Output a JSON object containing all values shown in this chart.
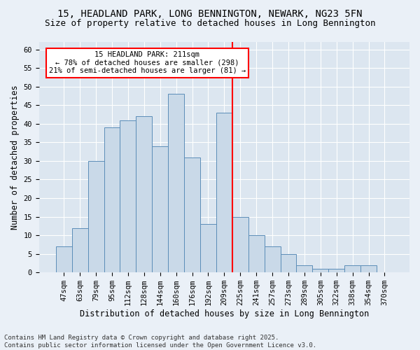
{
  "title1": "15, HEADLAND PARK, LONG BENNINGTON, NEWARK, NG23 5FN",
  "title2": "Size of property relative to detached houses in Long Bennington",
  "xlabel": "Distribution of detached houses by size in Long Bennington",
  "ylabel": "Number of detached properties",
  "categories": [
    "47sqm",
    "63sqm",
    "79sqm",
    "95sqm",
    "112sqm",
    "128sqm",
    "144sqm",
    "160sqm",
    "176sqm",
    "192sqm",
    "209sqm",
    "225sqm",
    "241sqm",
    "257sqm",
    "273sqm",
    "289sqm",
    "305sqm",
    "322sqm",
    "338sqm",
    "354sqm",
    "370sqm"
  ],
  "values": [
    7,
    12,
    30,
    39,
    41,
    42,
    34,
    48,
    31,
    13,
    43,
    15,
    10,
    7,
    5,
    2,
    1,
    1,
    2,
    2,
    0
  ],
  "bar_color": "#c9d9e8",
  "bar_edge_color": "#5b8db8",
  "vline_x_index": 10.5,
  "vline_color": "red",
  "annotation_text": "15 HEADLAND PARK: 211sqm\n← 78% of detached houses are smaller (298)\n21% of semi-detached houses are larger (81) →",
  "annotation_box_color": "white",
  "annotation_box_edge_color": "red",
  "footnote1": "Contains HM Land Registry data © Crown copyright and database right 2025.",
  "footnote2": "Contains public sector information licensed under the Open Government Licence v3.0.",
  "ylim": [
    0,
    62
  ],
  "yticks": [
    0,
    5,
    10,
    15,
    20,
    25,
    30,
    35,
    40,
    45,
    50,
    55,
    60
  ],
  "bg_color": "#eaf0f7",
  "plot_bg_color": "#dce6f0",
  "grid_color": "white",
  "title1_fontsize": 10,
  "title2_fontsize": 9,
  "tick_fontsize": 7.5,
  "label_fontsize": 8.5,
  "footnote_fontsize": 6.5,
  "annotation_fontsize": 7.5
}
